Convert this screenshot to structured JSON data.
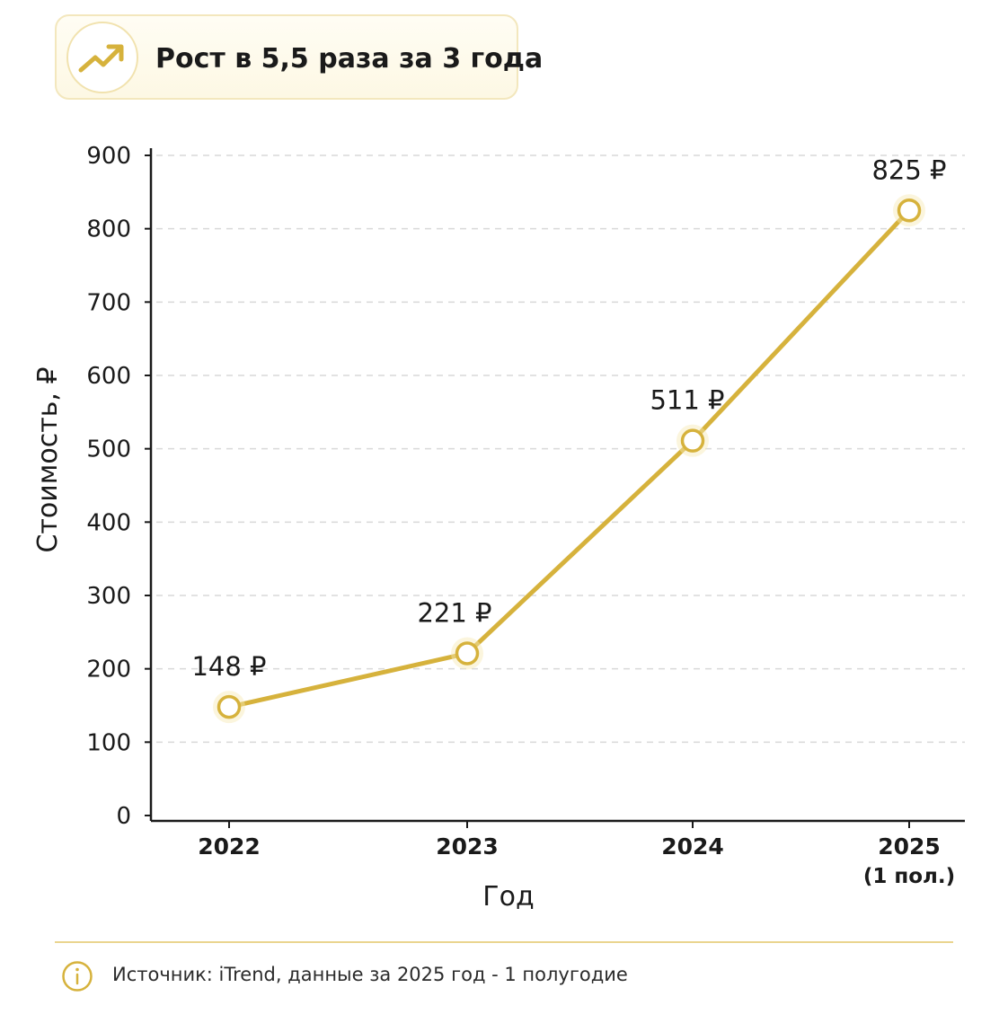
{
  "header": {
    "title": "Рост в 5,5 раза за 3 года",
    "icon": "trend-up-icon"
  },
  "chart_data": {
    "type": "line",
    "categories": [
      "2022",
      "2023",
      "2024",
      "2025"
    ],
    "category_sublabels": [
      "",
      "",
      "",
      "(1 пол.)"
    ],
    "values": [
      148,
      221,
      511,
      825
    ],
    "data_labels": [
      "148 ₽",
      "221 ₽",
      "511 ₽",
      "825 ₽"
    ],
    "xlabel": "Год",
    "ylabel": "Стоимость, ₽",
    "ylim": [
      0,
      900
    ],
    "yticks": [
      0,
      100,
      200,
      300,
      400,
      500,
      600,
      700,
      800,
      900
    ],
    "grid": true,
    "line_color": "#d6b23c",
    "axis_color": "#1a1a1a",
    "grid_color": "#d9d9d9"
  },
  "footer": {
    "source": "Источник: iTrend, данные за 2025 год - 1 полугодие",
    "icon": "info-icon"
  }
}
